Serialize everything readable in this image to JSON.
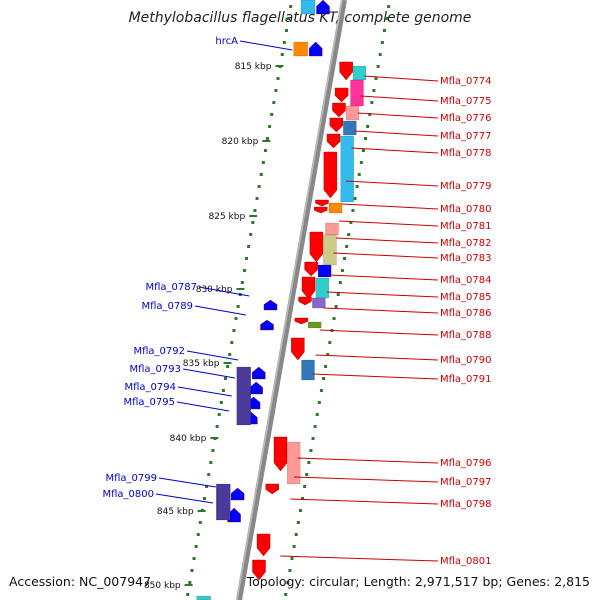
{
  "title": "Methylobacillus flagellatus KT, complete genome",
  "footer": {
    "accession": "Accession: NC_007947",
    "topology": "Topology: circular; Length: 2,971,517 bp; Genes: 2,815"
  },
  "ticks": [
    {
      "label": "815 kbp",
      "kbp": 815
    },
    {
      "label": "820 kbp",
      "kbp": 820
    },
    {
      "label": "825 kbp",
      "kbp": 825
    },
    {
      "label": "830 kbp",
      "kbp": 830
    },
    {
      "label": "835 kbp",
      "kbp": 835
    },
    {
      "label": "840 kbp",
      "kbp": 840
    },
    {
      "label": "845 kbp",
      "kbp": 845
    },
    {
      "label": "850 kbp",
      "kbp": 850
    }
  ],
  "strand_colors": {
    "forward": "#ff0000",
    "reverse": "#0000ff",
    "forward_label": "#cc0000",
    "reverse_label": "#0000cc",
    "backbone": "#888888",
    "tick": "#2a7a2a"
  },
  "forward_genes": [
    "Mfla_0774",
    "Mfla_0775",
    "Mfla_0776",
    "Mfla_0777",
    "Mfla_0778",
    "Mfla_0779",
    "Mfla_0780",
    "Mfla_0781",
    "Mfla_0782",
    "Mfla_0783",
    "Mfla_0784",
    "Mfla_0785",
    "Mfla_0786",
    "Mfla_0788",
    "Mfla_0790",
    "Mfla_0791",
    "Mfla_0796",
    "Mfla_0797",
    "Mfla_0798",
    "Mfla_0801"
  ],
  "reverse_genes": [
    "hrcA",
    "Mfla_0787",
    "Mfla_0789",
    "Mfla_0792",
    "Mfla_0793",
    "Mfla_0794",
    "Mfla_0795",
    "Mfla_0799",
    "Mfla_0800"
  ]
}
